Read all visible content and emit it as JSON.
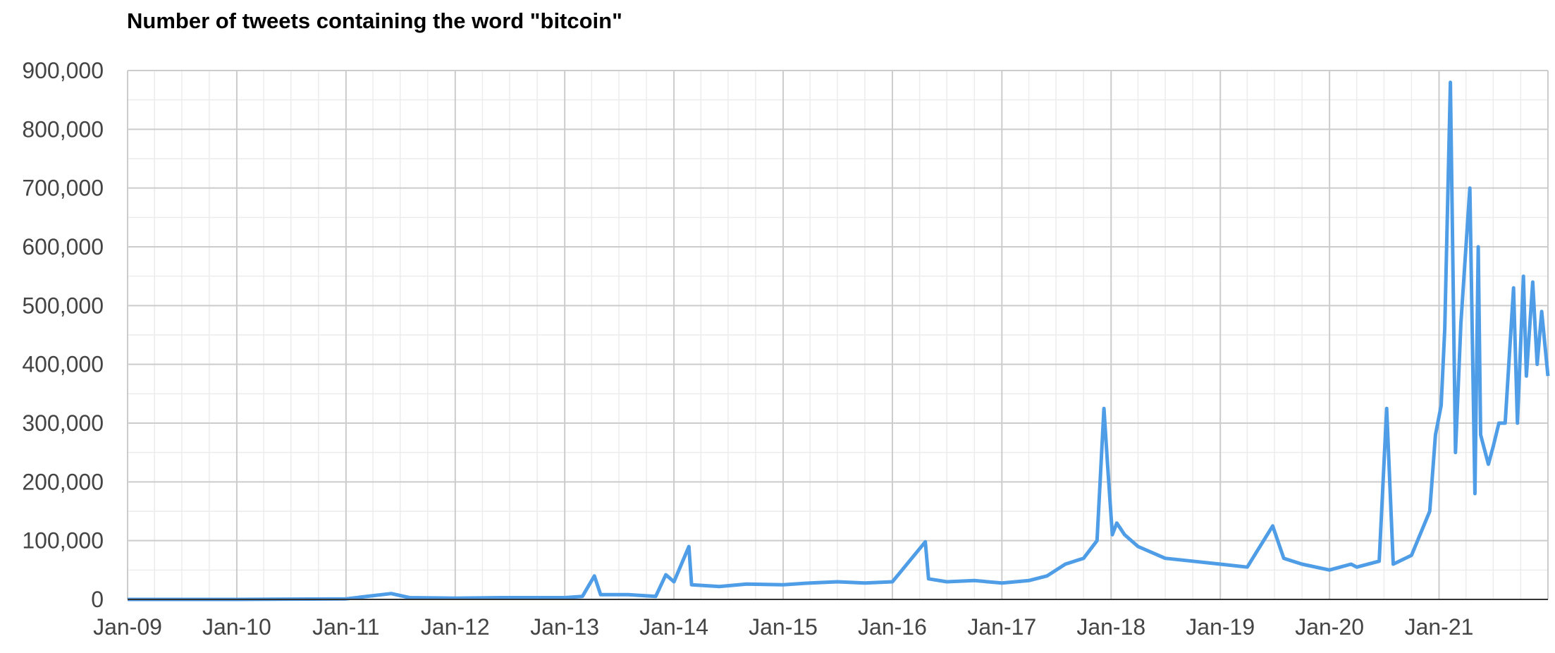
{
  "chart_data": {
    "type": "line",
    "title": "Number of tweets containing the word \"bitcoin\"",
    "xlabel": "",
    "ylabel": "",
    "ylim": [
      0,
      900000
    ],
    "xlim": [
      "2009-01-01",
      "2021-12-31"
    ],
    "y_ticks": [
      "0",
      "100,000",
      "200,000",
      "300,000",
      "400,000",
      "500,000",
      "600,000",
      "700,000",
      "800,000",
      "900,000"
    ],
    "x_ticks": [
      "Jan-09",
      "Jan-10",
      "Jan-11",
      "Jan-12",
      "Jan-13",
      "Jan-14",
      "Jan-15",
      "Jan-16",
      "Jan-17",
      "Jan-18",
      "Jan-19",
      "Jan-20",
      "Jan-21"
    ],
    "grid": true,
    "legend": "none",
    "line_color": "#4e9de6",
    "x": [
      "2009-01-01",
      "2010-01-01",
      "2011-01-01",
      "2011-06-01",
      "2011-08-01",
      "2012-01-01",
      "2012-06-01",
      "2013-01-01",
      "2013-03-01",
      "2013-04-10",
      "2013-05-01",
      "2013-08-01",
      "2013-11-01",
      "2013-12-05",
      "2014-01-01",
      "2014-02-20",
      "2014-03-01",
      "2014-06-01",
      "2014-09-01",
      "2015-01-01",
      "2015-04-01",
      "2015-07-01",
      "2015-10-01",
      "2016-01-01",
      "2016-04-20",
      "2016-05-01",
      "2016-07-01",
      "2016-10-01",
      "2017-01-01",
      "2017-04-01",
      "2017-06-01",
      "2017-08-01",
      "2017-10-01",
      "2017-11-15",
      "2017-12-08",
      "2017-12-20",
      "2018-01-05",
      "2018-01-20",
      "2018-02-15",
      "2018-04-01",
      "2018-07-01",
      "2018-10-01",
      "2019-01-01",
      "2019-04-01",
      "2019-06-25",
      "2019-08-01",
      "2019-10-01",
      "2020-01-01",
      "2020-03-13",
      "2020-04-01",
      "2020-06-15",
      "2020-07-10",
      "2020-08-01",
      "2020-10-01",
      "2020-12-01",
      "2020-12-20",
      "2021-01-08",
      "2021-01-20",
      "2021-02-08",
      "2021-02-25",
      "2021-03-15",
      "2021-04-14",
      "2021-05-01",
      "2021-05-12",
      "2021-05-20",
      "2021-06-15",
      "2021-07-01",
      "2021-07-20",
      "2021-08-10",
      "2021-09-07",
      "2021-09-20",
      "2021-10-10",
      "2021-10-20",
      "2021-11-10",
      "2021-11-25",
      "2021-12-10",
      "2021-12-31"
    ],
    "values": [
      0,
      0,
      1000,
      10000,
      3000,
      2000,
      3000,
      3000,
      5000,
      40000,
      8000,
      8000,
      5000,
      42000,
      30000,
      90000,
      25000,
      22000,
      26000,
      25000,
      28000,
      30000,
      28000,
      30000,
      98000,
      35000,
      30000,
      32000,
      28000,
      32000,
      40000,
      60000,
      70000,
      100000,
      325000,
      230000,
      110000,
      130000,
      110000,
      90000,
      70000,
      65000,
      60000,
      55000,
      125000,
      70000,
      60000,
      50000,
      60000,
      55000,
      65000,
      325000,
      60000,
      75000,
      150000,
      280000,
      330000,
      460000,
      880000,
      250000,
      470000,
      700000,
      180000,
      600000,
      280000,
      230000,
      260000,
      300000,
      300000,
      530000,
      300000,
      550000,
      380000,
      540000,
      400000,
      490000,
      380000
    ]
  }
}
